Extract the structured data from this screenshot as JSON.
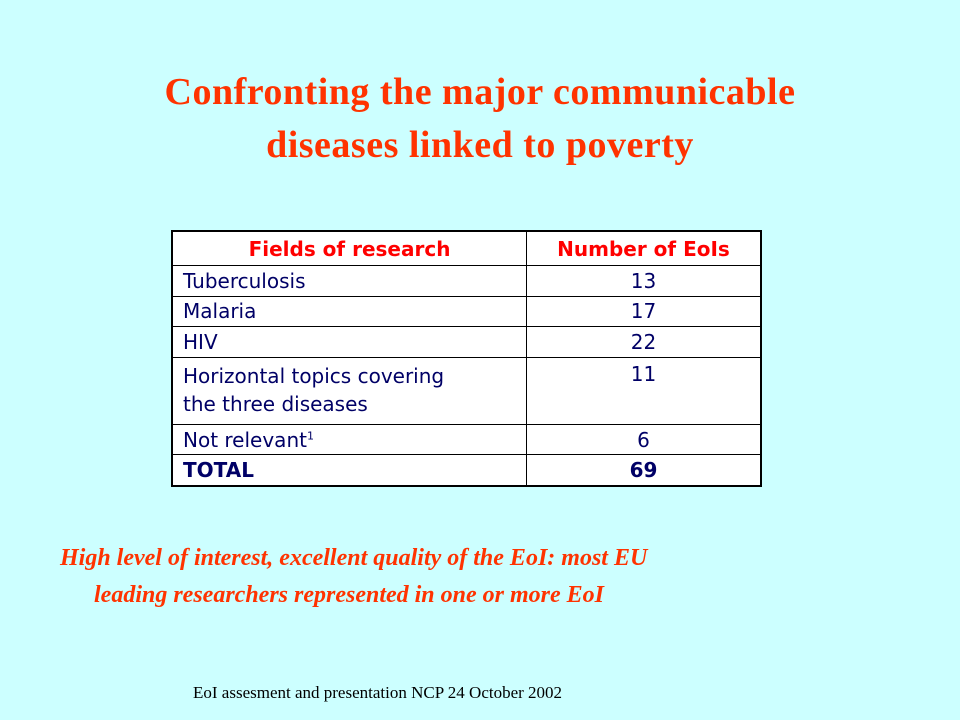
{
  "slide": {
    "title_line1": "Confronting the major communicable",
    "title_line2": "diseases linked to poverty",
    "table": {
      "headers": [
        "Fields of research",
        "Number of EoIs"
      ],
      "rows": [
        {
          "field": "Tuberculosis",
          "count": "13"
        },
        {
          "field": "Malaria",
          "count": "17"
        },
        {
          "field": "HIV",
          "count": "22"
        },
        {
          "field_line1": "Horizontal topics covering",
          "field_line2": "the three diseases",
          "count": "11"
        },
        {
          "field": "Not relevant",
          "footnote_mark": "1",
          "count": "6"
        },
        {
          "field": "TOTAL",
          "count": "69"
        }
      ]
    },
    "summary_line1": "High level of interest, excellent quality of the EoI: most EU",
    "summary_line2": "leading researchers represented in one or more EoI",
    "footer": "EoI assesment and presentation NCP 24 October 2002"
  },
  "colors": {
    "background": "#ccffff",
    "title": "#ff3300",
    "table_header": "#ff0000",
    "table_text": "#000066"
  }
}
